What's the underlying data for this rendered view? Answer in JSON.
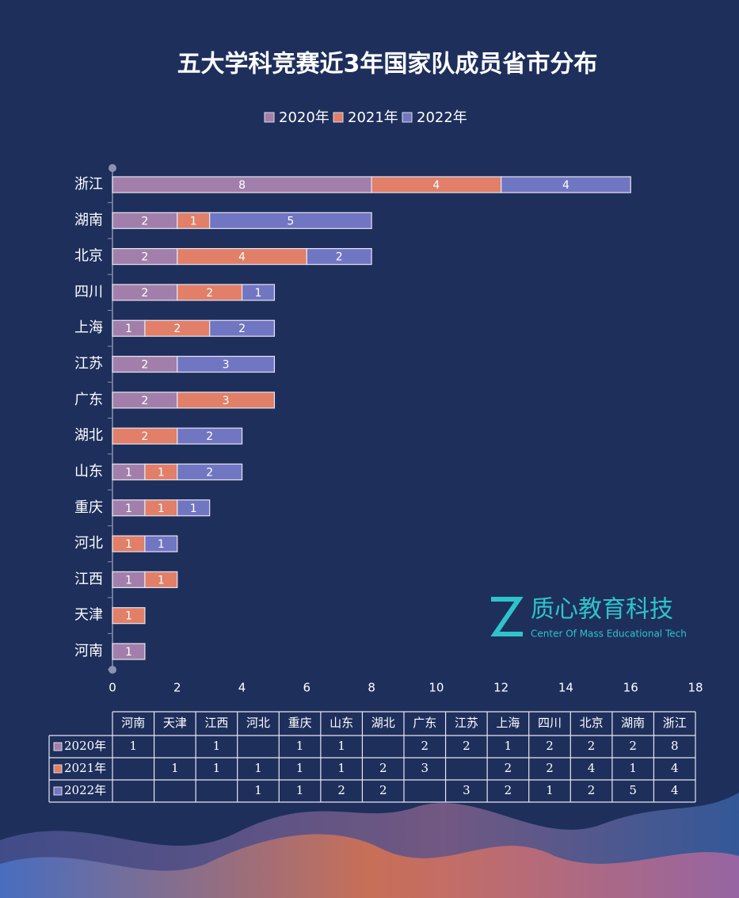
{
  "chart_data": {
    "type": "bar",
    "orientation": "horizontal",
    "stacked": true,
    "title": "五大学科竞赛近3年国家队成员省市分布",
    "categories": [
      "河南",
      "天津",
      "江西",
      "河北",
      "重庆",
      "山东",
      "湖北",
      "广东",
      "江苏",
      "上海",
      "四川",
      "北京",
      "湖南",
      "浙江"
    ],
    "series": [
      {
        "name": "2020年",
        "color": "#a27fab",
        "values": [
          1,
          null,
          1,
          null,
          1,
          1,
          null,
          2,
          2,
          1,
          2,
          2,
          2,
          8
        ]
      },
      {
        "name": "2021年",
        "color": "#e17f69",
        "values": [
          null,
          1,
          1,
          1,
          1,
          1,
          2,
          3,
          null,
          2,
          2,
          4,
          1,
          4
        ]
      },
      {
        "name": "2022年",
        "color": "#7176c2",
        "values": [
          null,
          null,
          null,
          1,
          1,
          2,
          2,
          null,
          3,
          2,
          1,
          2,
          5,
          4
        ]
      }
    ],
    "xlim": [
      0,
      18
    ],
    "xticks": [
      0,
      2,
      4,
      6,
      8,
      10,
      12,
      14,
      16,
      18
    ],
    "legend": "top",
    "data_table": true,
    "watermark": {
      "name": "质心教育科技",
      "tagline": "Center Of Mass Educational Tech"
    }
  }
}
